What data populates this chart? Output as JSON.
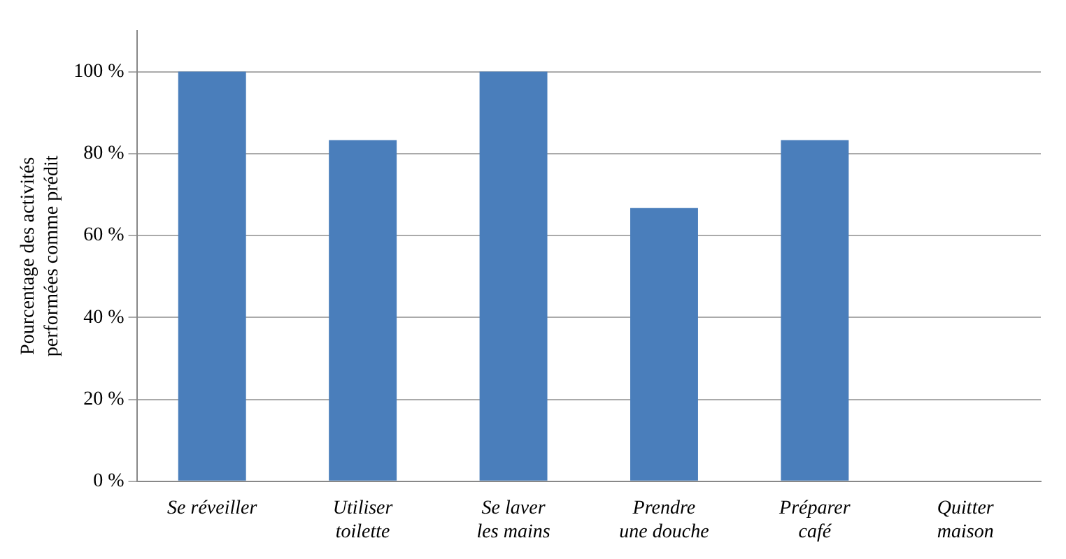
{
  "chart_data": {
    "type": "bar",
    "ylabel": "Pourcentage des activités performées comme prédit",
    "categories": [
      "Se réveiller",
      "Utiliser toilette",
      "Se laver les mains",
      "Prendre une douche",
      "Préparer café",
      "Quitter maison"
    ],
    "values": [
      100,
      83.3,
      100,
      66.7,
      83.3,
      0
    ],
    "color": "#4a7ebb",
    "ylim": [
      0,
      110
    ],
    "yticks": [
      {
        "value": 0,
        "label": "0 %"
      },
      {
        "value": 20,
        "label": "20 %"
      },
      {
        "value": 40,
        "label": "40 %"
      },
      {
        "value": 60,
        "label": "60 %"
      },
      {
        "value": 80,
        "label": "80 %"
      },
      {
        "value": 100,
        "label": "100 %"
      }
    ],
    "grid": "y"
  }
}
